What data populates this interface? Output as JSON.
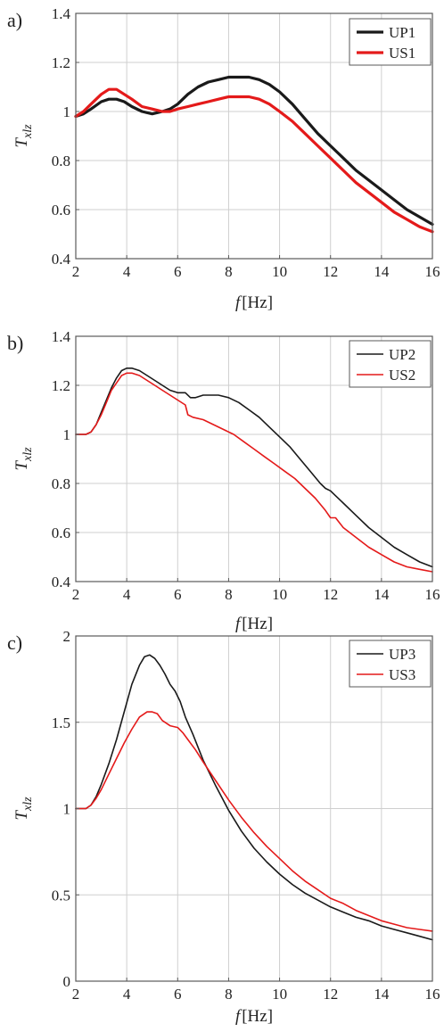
{
  "chart_data": [
    {
      "type": "line",
      "panel_label": "a)",
      "xlabel": {
        "symbol": "f",
        "unit": "[Hz]"
      },
      "ylabel": {
        "main": "T",
        "sub": "xlz"
      },
      "xlim": [
        2,
        16
      ],
      "ylim": [
        0.4,
        1.4
      ],
      "xticks": [
        "2",
        "4",
        "6",
        "8",
        "10",
        "12",
        "14",
        "16"
      ],
      "yticks": [
        "0.4",
        "0.6",
        "0.8",
        "1",
        "1.2",
        "1.4"
      ],
      "ytick_values": [
        0.4,
        0.6,
        0.8,
        1.0,
        1.2,
        1.4
      ],
      "legend_position": "top-right",
      "grid": true,
      "series": [
        {
          "name": "UP1",
          "color": "#1a1a1a",
          "width": 3.2,
          "x": [
            2.0,
            2.3,
            2.6,
            3.0,
            3.3,
            3.6,
            3.9,
            4.2,
            4.6,
            5.0,
            5.4,
            5.7,
            6.0,
            6.4,
            6.8,
            7.2,
            7.6,
            8.0,
            8.4,
            8.8,
            9.2,
            9.6,
            10.0,
            10.5,
            11.0,
            11.5,
            12.0,
            12.5,
            13.0,
            13.5,
            14.0,
            14.5,
            15.0,
            15.5,
            16.0
          ],
          "y": [
            0.98,
            0.99,
            1.01,
            1.04,
            1.05,
            1.05,
            1.04,
            1.02,
            1.0,
            0.99,
            1.0,
            1.01,
            1.03,
            1.07,
            1.1,
            1.12,
            1.13,
            1.14,
            1.14,
            1.14,
            1.13,
            1.11,
            1.08,
            1.03,
            0.97,
            0.91,
            0.86,
            0.81,
            0.76,
            0.72,
            0.68,
            0.64,
            0.6,
            0.57,
            0.54
          ]
        },
        {
          "name": "US1",
          "color": "#e41a1a",
          "width": 3.2,
          "x": [
            2.0,
            2.3,
            2.6,
            3.0,
            3.3,
            3.6,
            3.9,
            4.2,
            4.6,
            5.0,
            5.4,
            5.7,
            6.0,
            6.4,
            6.8,
            7.2,
            7.6,
            8.0,
            8.4,
            8.8,
            9.2,
            9.6,
            10.0,
            10.5,
            11.0,
            11.5,
            12.0,
            12.5,
            13.0,
            13.5,
            14.0,
            14.5,
            15.0,
            15.5,
            16.0
          ],
          "y": [
            0.98,
            1.0,
            1.03,
            1.07,
            1.09,
            1.09,
            1.07,
            1.05,
            1.02,
            1.01,
            1.0,
            1.0,
            1.01,
            1.02,
            1.03,
            1.04,
            1.05,
            1.06,
            1.06,
            1.06,
            1.05,
            1.03,
            1.0,
            0.96,
            0.91,
            0.86,
            0.81,
            0.76,
            0.71,
            0.67,
            0.63,
            0.59,
            0.56,
            0.53,
            0.51
          ]
        }
      ]
    },
    {
      "type": "line",
      "panel_label": "b)",
      "xlabel": {
        "symbol": "f",
        "unit": "[Hz]"
      },
      "ylabel": {
        "main": "T",
        "sub": "xlz"
      },
      "xlim": [
        2,
        16
      ],
      "ylim": [
        0.4,
        1.4
      ],
      "xticks": [
        "2",
        "4",
        "6",
        "8",
        "10",
        "12",
        "14",
        "16"
      ],
      "yticks": [
        "0.4",
        "0.6",
        "0.8",
        "1",
        "1.2",
        "1.4"
      ],
      "ytick_values": [
        0.4,
        0.6,
        0.8,
        1.0,
        1.2,
        1.4
      ],
      "legend_position": "top-right",
      "grid": true,
      "series": [
        {
          "name": "UP2",
          "color": "#1a1a1a",
          "width": 1.6,
          "x": [
            2.0,
            2.4,
            2.6,
            2.8,
            3.0,
            3.2,
            3.4,
            3.6,
            3.8,
            4.0,
            4.2,
            4.5,
            4.8,
            5.1,
            5.4,
            5.7,
            6.0,
            6.3,
            6.5,
            6.7,
            7.0,
            7.3,
            7.6,
            8.0,
            8.4,
            8.8,
            9.2,
            9.6,
            10.0,
            10.4,
            10.8,
            11.2,
            11.6,
            11.8,
            12.0,
            12.2,
            12.5,
            13.0,
            13.5,
            14.0,
            14.5,
            15.0,
            15.5,
            16.0
          ],
          "y": [
            1.0,
            1.0,
            1.01,
            1.04,
            1.09,
            1.14,
            1.19,
            1.23,
            1.26,
            1.27,
            1.27,
            1.26,
            1.24,
            1.22,
            1.2,
            1.18,
            1.17,
            1.17,
            1.15,
            1.15,
            1.16,
            1.16,
            1.16,
            1.15,
            1.13,
            1.1,
            1.07,
            1.03,
            0.99,
            0.95,
            0.9,
            0.85,
            0.8,
            0.78,
            0.77,
            0.75,
            0.72,
            0.67,
            0.62,
            0.58,
            0.54,
            0.51,
            0.48,
            0.46
          ]
        },
        {
          "name": "US2",
          "color": "#e41a1a",
          "width": 1.6,
          "x": [
            2.0,
            2.4,
            2.6,
            2.8,
            3.0,
            3.2,
            3.4,
            3.6,
            3.8,
            4.0,
            4.2,
            4.5,
            4.8,
            5.1,
            5.4,
            5.7,
            6.0,
            6.3,
            6.4,
            6.6,
            7.0,
            7.4,
            7.8,
            8.2,
            8.6,
            9.0,
            9.4,
            9.8,
            10.2,
            10.6,
            11.0,
            11.4,
            11.8,
            12.0,
            12.2,
            12.5,
            13.0,
            13.5,
            14.0,
            14.5,
            15.0,
            15.5,
            16.0
          ],
          "y": [
            1.0,
            1.0,
            1.01,
            1.04,
            1.08,
            1.13,
            1.18,
            1.21,
            1.24,
            1.25,
            1.25,
            1.24,
            1.22,
            1.2,
            1.18,
            1.16,
            1.14,
            1.12,
            1.08,
            1.07,
            1.06,
            1.04,
            1.02,
            1.0,
            0.97,
            0.94,
            0.91,
            0.88,
            0.85,
            0.82,
            0.78,
            0.74,
            0.69,
            0.66,
            0.66,
            0.62,
            0.58,
            0.54,
            0.51,
            0.48,
            0.46,
            0.45,
            0.44
          ]
        }
      ]
    },
    {
      "type": "line",
      "panel_label": "c)",
      "xlabel": {
        "symbol": "f",
        "unit": "[Hz]"
      },
      "ylabel": {
        "main": "T",
        "sub": "xlz"
      },
      "xlim": [
        2,
        16
      ],
      "ylim": [
        0,
        2
      ],
      "xticks": [
        "2",
        "4",
        "6",
        "8",
        "10",
        "12",
        "14",
        "16"
      ],
      "yticks": [
        "0",
        "0.5",
        "1",
        "1.5",
        "2"
      ],
      "ytick_values": [
        0,
        0.5,
        1.0,
        1.5,
        2.0
      ],
      "legend_position": "top-right",
      "grid": true,
      "series": [
        {
          "name": "UP3",
          "color": "#1a1a1a",
          "width": 1.6,
          "x": [
            2.0,
            2.4,
            2.6,
            2.8,
            3.0,
            3.3,
            3.6,
            3.9,
            4.2,
            4.5,
            4.7,
            4.9,
            5.1,
            5.3,
            5.5,
            5.7,
            5.9,
            6.1,
            6.3,
            6.6,
            7.0,
            7.5,
            8.0,
            8.5,
            9.0,
            9.5,
            10.0,
            10.5,
            11.0,
            11.5,
            12.0,
            12.5,
            13.0,
            13.5,
            14.0,
            14.5,
            15.0,
            15.5,
            16.0
          ],
          "y": [
            1.0,
            1.0,
            1.02,
            1.07,
            1.14,
            1.26,
            1.4,
            1.56,
            1.72,
            1.83,
            1.88,
            1.89,
            1.87,
            1.83,
            1.78,
            1.72,
            1.68,
            1.62,
            1.53,
            1.43,
            1.28,
            1.13,
            0.99,
            0.87,
            0.77,
            0.69,
            0.62,
            0.56,
            0.51,
            0.47,
            0.43,
            0.4,
            0.37,
            0.35,
            0.32,
            0.3,
            0.28,
            0.26,
            0.24
          ]
        },
        {
          "name": "US3",
          "color": "#e41a1a",
          "width": 1.6,
          "x": [
            2.0,
            2.4,
            2.6,
            2.8,
            3.0,
            3.3,
            3.6,
            3.9,
            4.2,
            4.5,
            4.8,
            5.0,
            5.2,
            5.4,
            5.7,
            6.0,
            6.2,
            6.4,
            6.7,
            7.0,
            7.5,
            8.0,
            8.5,
            9.0,
            9.5,
            10.0,
            10.5,
            11.0,
            11.5,
            12.0,
            12.5,
            13.0,
            13.5,
            14.0,
            14.5,
            15.0,
            15.5,
            16.0
          ],
          "y": [
            1.0,
            1.0,
            1.02,
            1.06,
            1.11,
            1.2,
            1.29,
            1.38,
            1.46,
            1.53,
            1.56,
            1.56,
            1.55,
            1.51,
            1.48,
            1.47,
            1.44,
            1.4,
            1.34,
            1.27,
            1.16,
            1.05,
            0.95,
            0.86,
            0.78,
            0.71,
            0.64,
            0.58,
            0.53,
            0.48,
            0.45,
            0.41,
            0.38,
            0.35,
            0.33,
            0.31,
            0.3,
            0.29
          ]
        }
      ]
    }
  ]
}
